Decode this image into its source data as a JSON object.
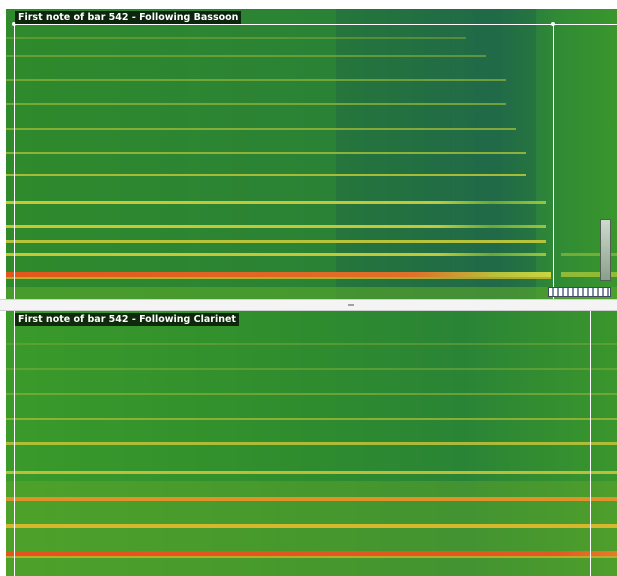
{
  "panes": [
    {
      "title": "First note of bar 542 - Following Bassoon",
      "instrument": "Bassoon"
    },
    {
      "title": "First note of bar 542 - Following Clarinet",
      "instrument": "Clarinet"
    }
  ],
  "colors": {
    "background_green": "#2f8f2a",
    "dark_band": "#1f6b3c",
    "harmonic_yellow": "#d7d23a",
    "fundamental_orange": "#e0621f",
    "marker": "#ffffff"
  },
  "icons": {
    "gain_slider": "vertical-slider-icon",
    "scroll_control": "scrollbar-thumb-icon",
    "splitter": "splitter-grip-icon"
  }
}
